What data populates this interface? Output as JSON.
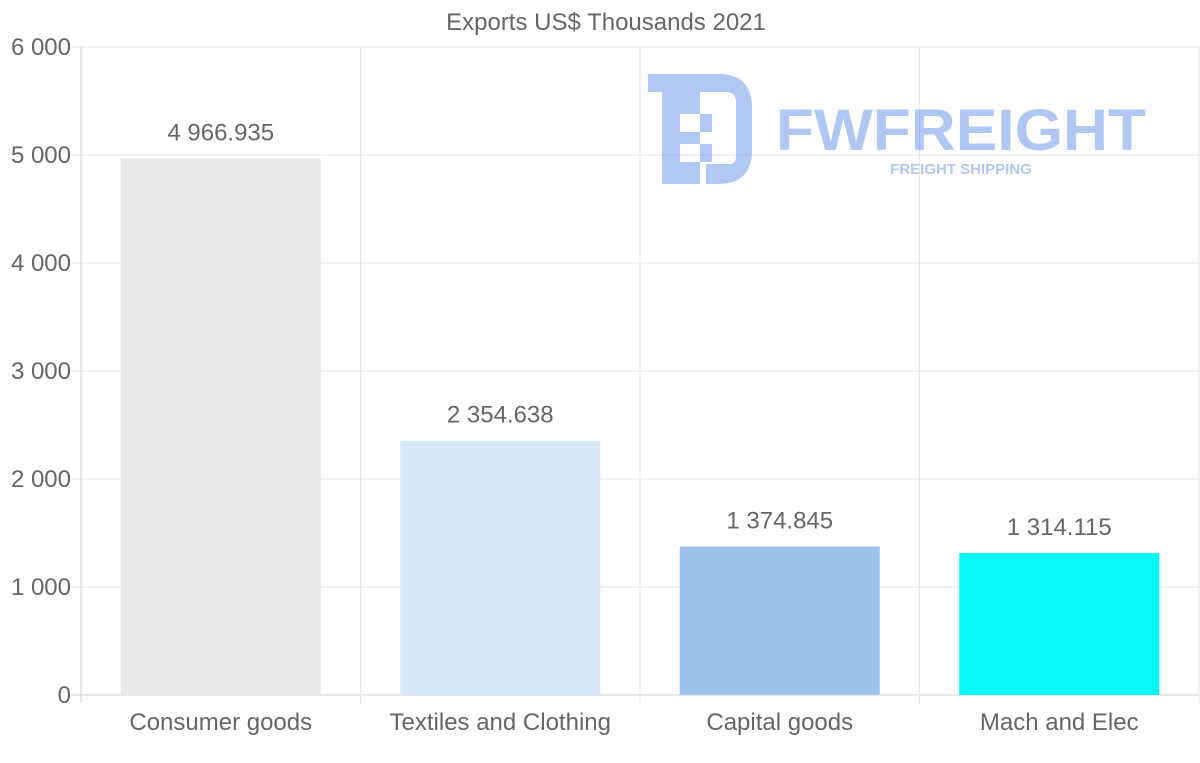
{
  "chart_data": {
    "type": "bar",
    "title": "Exports US$ Thousands 2021",
    "categories": [
      "Consumer goods",
      "Textiles and Clothing",
      "Capital goods",
      "Mach and Elec"
    ],
    "values": [
      4966.935,
      2354.638,
      1374.845,
      1314.115
    ],
    "value_labels": [
      "4 966.935",
      "2 354.638",
      "1 374.845",
      "1 314.115"
    ],
    "bar_colors": [
      "#e8e8e8",
      "#d8e8fa",
      "#9dc4e8",
      "#04f7f7"
    ],
    "ylim": [
      0,
      6000
    ],
    "yticks": [
      0,
      1000,
      2000,
      3000,
      4000,
      5000,
      6000
    ],
    "ytick_labels": [
      "0",
      "1 000",
      "2 000",
      "3 000",
      "4 000",
      "5 000",
      "6 000"
    ],
    "xlabel": "",
    "ylabel": "",
    "grid": true,
    "legend": "none"
  },
  "watermark": {
    "brand": "FWFREIGHT",
    "tagline": "FREIGHT SHIPPING",
    "color": "#6f9be8"
  },
  "colors": {
    "text": "#666666",
    "grid": "#e6e6e6",
    "axis": "#cfcfcf"
  }
}
